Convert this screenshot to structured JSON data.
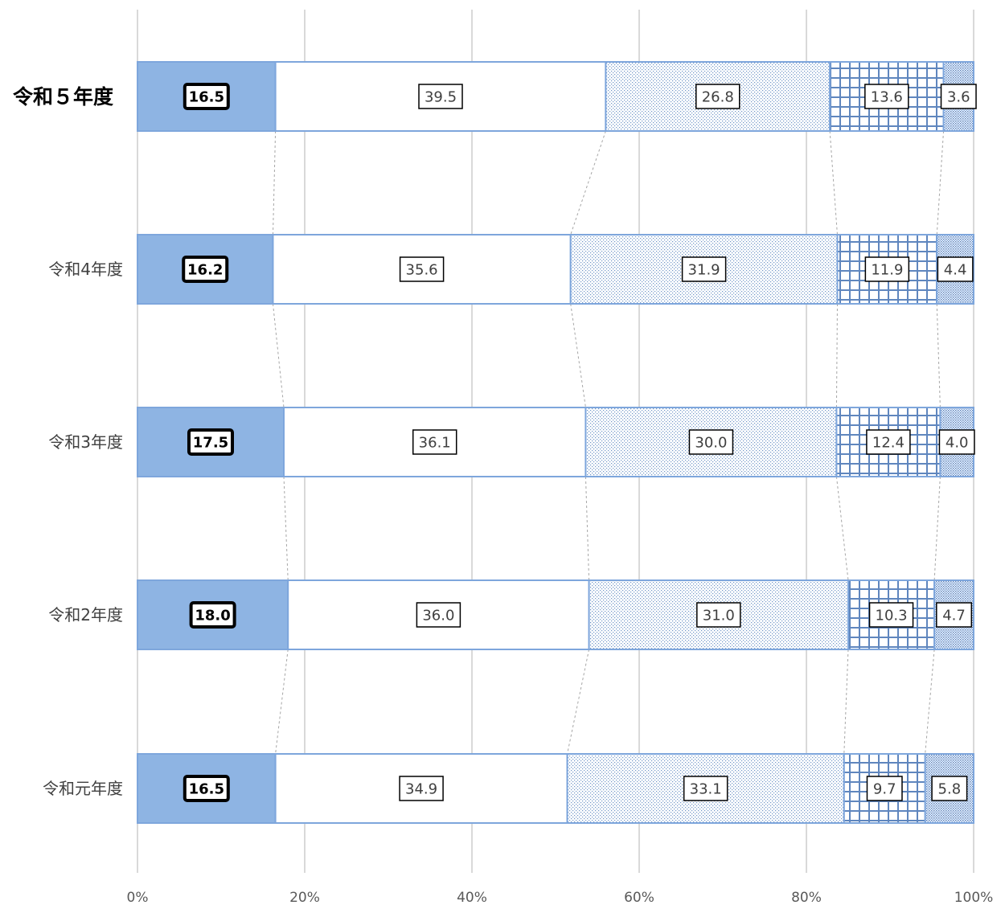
{
  "chart_data": {
    "type": "bar",
    "orientation": "horizontal",
    "stacked": "100%",
    "categories": [
      "令和５年度",
      "令和4年度",
      "令和3年度",
      "令和2年度",
      "令和元年度"
    ],
    "highlight_category": "令和５年度",
    "series": [
      {
        "values": [
          16.5,
          16.2,
          17.5,
          18.0,
          16.5
        ],
        "fill": "#8EB4E3",
        "pattern": "solid"
      },
      {
        "values": [
          39.5,
          35.6,
          36.1,
          36.0,
          34.9
        ],
        "fill": "#FFFFFF",
        "pattern": "none"
      },
      {
        "values": [
          26.8,
          31.9,
          30.0,
          31.0,
          33.1
        ],
        "fill": "#FFFFFF",
        "pattern": "dots"
      },
      {
        "values": [
          13.6,
          11.9,
          12.4,
          10.3,
          9.7
        ],
        "fill": "#FFFFFF",
        "pattern": "grid"
      },
      {
        "values": [
          3.6,
          4.4,
          4.0,
          4.7,
          5.8
        ],
        "fill": "#FFFFFF",
        "pattern": "dense-dots"
      }
    ],
    "x_ticks": [
      "0%",
      "20%",
      "40%",
      "60%",
      "80%",
      "100%"
    ],
    "xlim": [
      0,
      100
    ],
    "grid": true,
    "series_lines": true,
    "colors": {
      "accent": "#8EB4E3",
      "border": "#7EA6DC",
      "gridline": "#D9D9D9"
    }
  }
}
